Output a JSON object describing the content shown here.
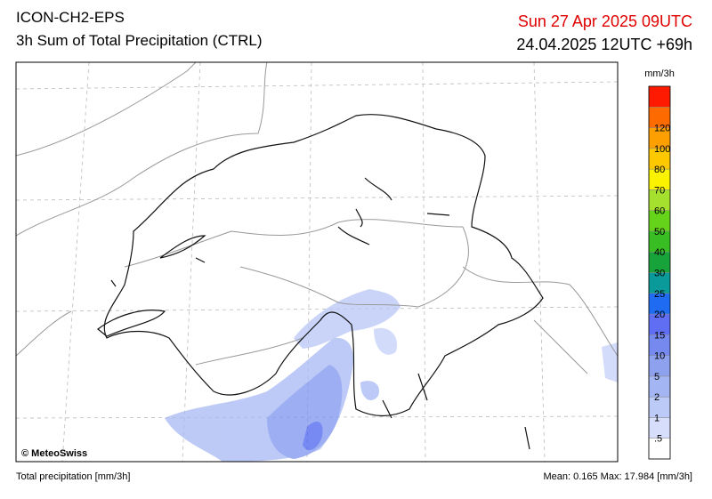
{
  "header": {
    "model": "ICON-CH2-EPS",
    "product": "3h Sum of Total Precipitation (CTRL)",
    "valid_time": "Sun 27 Apr 2025 09UTC",
    "run_time": "24.04.2025 12UTC +69h"
  },
  "map": {
    "copyright": "© MeteoSwiss"
  },
  "legend": {
    "unit": "mm/3h",
    "colors": [
      "#ffffff",
      "#d7defb",
      "#bccaf7",
      "#a3b5f2",
      "#8ea1ee",
      "#7589ee",
      "#5f6ef2",
      "#1f6cf2",
      "#0b9a9a",
      "#18a33a",
      "#38bd22",
      "#66d31b",
      "#a6e02e",
      "#fbf200",
      "#fdc800",
      "#fd9f00",
      "#fd6a00",
      "#fd1a00"
    ],
    "labels": [
      ".5",
      "1",
      "2",
      "5",
      "10",
      "15",
      "20",
      "25",
      "30",
      "40",
      "50",
      "60",
      "70",
      "80",
      "100",
      "120"
    ]
  },
  "footer": {
    "left": "Total precipitation [mm/3h]",
    "right": "Mean:  0.165 Max: 17.984 [mm/3h]"
  }
}
